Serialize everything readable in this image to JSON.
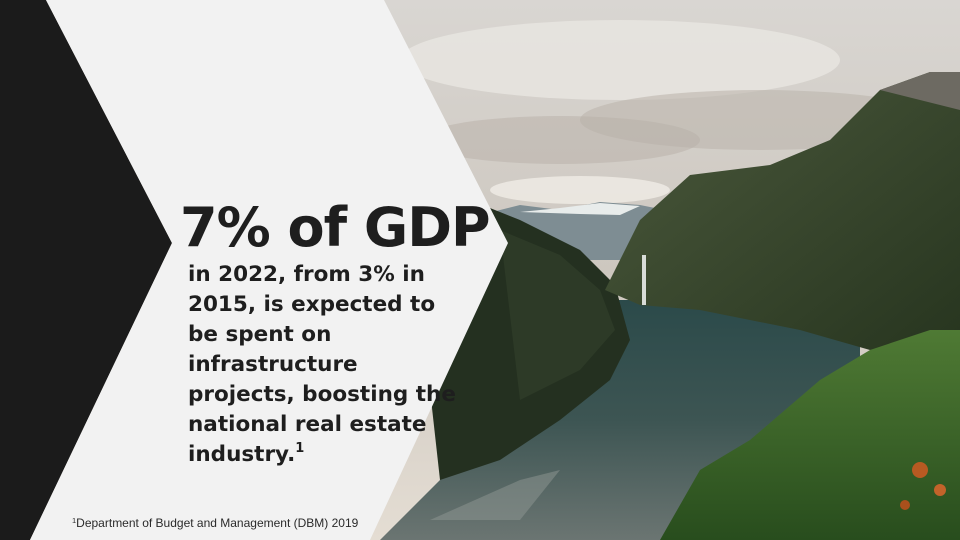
{
  "headline": "7% of GDP",
  "body": {
    "text": "in 2022, from 3% in 2015, is expected to be spent on infrastructure projects, boosting the national real estate industry.",
    "footnote_ref": "1"
  },
  "footnote": {
    "marker": "1",
    "text": "Department of Budget and Management (DBM) 2019"
  },
  "colors": {
    "dark": "#1b1b1b",
    "panel": "#f2f2f2",
    "text": "#1e1e1e"
  },
  "background_image": "norwegian-fjord-landscape-photo"
}
